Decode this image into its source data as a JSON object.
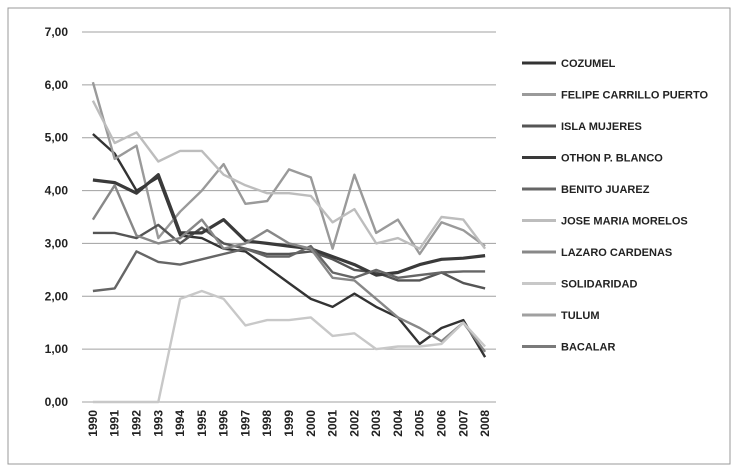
{
  "chart_data": {
    "type": "line",
    "categories": [
      "1990",
      "1991",
      "1992",
      "1993",
      "1994",
      "1995",
      "1996",
      "1997",
      "1998",
      "1999",
      "2000",
      "2001",
      "2002",
      "2003",
      "2004",
      "2005",
      "2006",
      "2007",
      "2008"
    ],
    "ylim": [
      0,
      7
    ],
    "yticks": [
      {
        "value": 0,
        "label": "0,00"
      },
      {
        "value": 1,
        "label": "1,00"
      },
      {
        "value": 2,
        "label": "2,00"
      },
      {
        "value": 3,
        "label": "3,00"
      },
      {
        "value": 4,
        "label": "4,00"
      },
      {
        "value": 5,
        "label": "5,00"
      },
      {
        "value": 6,
        "label": "6,00"
      },
      {
        "value": 7,
        "label": "7,00"
      }
    ],
    "grid": true,
    "legend": "right",
    "series": [
      {
        "name": "COZUMEL",
        "color": "#333333",
        "values": [
          5.07,
          4.7,
          4.0,
          4.25,
          3.15,
          3.1,
          2.9,
          2.85,
          2.55,
          2.25,
          1.95,
          1.8,
          2.05,
          1.8,
          1.6,
          1.1,
          1.4,
          1.55,
          0.85
        ]
      },
      {
        "name": "FELIPE CARRILLO PUERTO",
        "color": "#9a9a9a",
        "values": [
          6.05,
          4.6,
          4.85,
          3.1,
          3.6,
          4.0,
          4.5,
          3.75,
          3.8,
          4.4,
          4.25,
          2.9,
          4.3,
          3.2,
          3.45,
          2.8,
          3.4,
          3.25,
          2.95
        ]
      },
      {
        "name": "ISLA MUJERES",
        "color": "#555555",
        "values": [
          3.2,
          3.2,
          3.1,
          3.35,
          3.0,
          3.3,
          3.0,
          2.9,
          2.8,
          2.8,
          2.85,
          2.7,
          2.5,
          2.45,
          2.3,
          2.3,
          2.45,
          2.25,
          2.15
        ]
      },
      {
        "name": "OTHON P. BLANCO",
        "color": "#3a3a3a",
        "values": [
          4.2,
          4.15,
          3.95,
          4.3,
          3.2,
          3.2,
          3.45,
          3.05,
          3.0,
          2.95,
          2.9,
          2.75,
          2.6,
          2.4,
          2.45,
          2.6,
          2.7,
          2.72,
          2.77
        ]
      },
      {
        "name": "BENITO JUAREZ",
        "color": "#666666",
        "values": [
          2.1,
          2.15,
          2.85,
          2.65,
          2.6,
          2.7,
          2.8,
          2.9,
          2.75,
          2.75,
          2.95,
          2.45,
          2.35,
          2.5,
          2.35,
          2.4,
          2.45,
          2.47,
          2.47
        ]
      },
      {
        "name": "JOSE MARIA MORELOS",
        "color": "#bdbdbd",
        "values": [
          5.7,
          4.9,
          5.1,
          4.55,
          4.75,
          4.75,
          4.3,
          4.1,
          3.95,
          3.95,
          3.9,
          3.4,
          3.65,
          3.0,
          3.1,
          2.9,
          3.5,
          3.45,
          2.9
        ]
      },
      {
        "name": "LAZARO CARDENAS",
        "color": "#888888",
        "values": [
          3.45,
          4.1,
          3.15,
          3.0,
          3.1,
          3.45,
          2.9,
          3.0,
          3.25,
          3.0,
          2.9,
          2.35,
          2.3,
          1.95,
          1.6,
          1.4,
          1.15,
          1.5,
          0.95
        ]
      },
      {
        "name": "SOLIDARIDAD",
        "color": "#c8c8c8",
        "values": [
          0,
          0,
          0,
          0,
          1.95,
          2.1,
          1.95,
          1.45,
          1.55,
          1.55,
          1.6,
          1.25,
          1.3,
          1.0,
          1.05,
          1.05,
          1.1,
          1.5,
          1.05
        ]
      },
      {
        "name": "TULUM",
        "color": "#a0a0a0",
        "values": [
          null,
          null,
          null,
          null,
          null,
          null,
          null,
          null,
          null,
          null,
          null,
          null,
          null,
          null,
          null,
          null,
          null,
          null,
          null
        ]
      },
      {
        "name": "BACALAR",
        "color": "#7a7a7a",
        "values": [
          null,
          null,
          null,
          null,
          null,
          null,
          null,
          null,
          null,
          null,
          null,
          null,
          null,
          null,
          null,
          null,
          null,
          null,
          null
        ]
      }
    ]
  }
}
